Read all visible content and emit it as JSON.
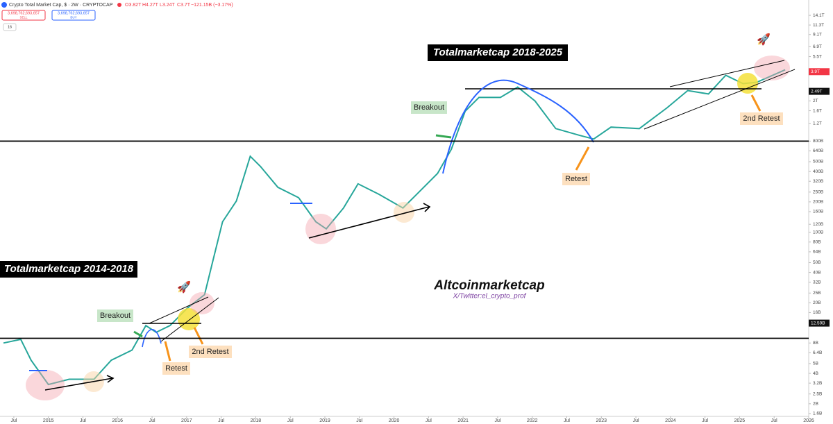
{
  "header": {
    "symbol": "Crypto Total Market Cap, $ · 2W · CRYPTOCAP",
    "open": "O3.82T",
    "high": "H4.27T",
    "low": "L3.24T",
    "close": "C3.7T",
    "change": "−121.15B (−3.17%)",
    "sell_price": "3,698,762,693,657",
    "sell": "SELL",
    "buy_price": "3,698,762,693,657",
    "buy": "BUY",
    "indicator_count": "16"
  },
  "annotations": {
    "title_recent": "Totalmarketcap 2018-2025",
    "title_early": "Totalmarketcap 2014-2018",
    "breakout_recent": "Breakout",
    "breakout_early": "Breakout",
    "retest_recent": "Retest",
    "retest_early": "Retest",
    "second_retest_recent": "2nd Retest",
    "second_retest_early": "2nd Retest",
    "watermark": "Altcoinmarketcap",
    "credit": "X/Twitter:el_crypto_prof"
  },
  "chart_data": {
    "type": "line",
    "log_scale": true,
    "color": "#26a69a",
    "x": [
      2014.35,
      2014.6,
      2014.75,
      2015.0,
      2015.3,
      2015.66,
      2015.91,
      2016.21,
      2016.41,
      2016.56,
      2016.76,
      2017.01,
      2017.26,
      2017.37,
      2017.52,
      2017.72,
      2017.92,
      2018.07,
      2018.32,
      2018.62,
      2018.87,
      2019.02,
      2019.27,
      2019.48,
      2019.78,
      2020.13,
      2020.33,
      2020.63,
      2020.83,
      2021.03,
      2021.23,
      2021.54,
      2021.79,
      2022.04,
      2022.34,
      2022.69,
      2022.89,
      2023.14,
      2023.55,
      2023.95,
      2024.25,
      2024.55,
      2024.8,
      2025.05,
      2025.25,
      2025.66
    ],
    "values": [
      8.0,
      8.7,
      5.4,
      3.1,
      3.5,
      3.5,
      5.4,
      6.8,
      11.9,
      10.2,
      11.9,
      17.7,
      24.1,
      49,
      127,
      204,
      566,
      447,
      279,
      220,
      127,
      108,
      174,
      302,
      238,
      174,
      238,
      382,
      664,
      1580,
      2165,
      2165,
      2745,
      2000,
      1065,
      910,
      840,
      1100,
      1065,
      1710,
      2534,
      2345,
      3590,
      2970,
      3066,
      4070
    ],
    "xlim": [
      2014.3,
      2026.0
    ],
    "xticks": [
      {
        "value": 2014.5,
        "label": "Jul"
      },
      2015,
      {
        "value": 2015.5,
        "label": "Jul"
      },
      2016,
      {
        "value": 2016.5,
        "label": "Jul"
      },
      2017,
      {
        "value": 2017.5,
        "label": "Jul"
      },
      2018,
      {
        "value": 2018.5,
        "label": "Jul"
      },
      2019,
      {
        "value": 2019.5,
        "label": "Jul"
      },
      2020,
      {
        "value": 2020.5,
        "label": "Jul"
      },
      2021,
      {
        "value": 2021.5,
        "label": "Jul"
      },
      2022,
      {
        "value": 2022.5,
        "label": "Jul"
      },
      2023,
      {
        "value": 2023.5,
        "label": "Jul"
      },
      2024,
      {
        "value": 2024.5,
        "label": "Jul"
      },
      2025,
      {
        "value": 2025.5,
        "label": "Jul"
      },
      2026
    ],
    "ylim": [
      1.5,
      20000
    ],
    "yticks": [
      {
        "value": 1.6,
        "label": "1.6B"
      },
      {
        "value": 2,
        "label": "2B"
      },
      {
        "value": 2.5,
        "label": "2.5B"
      },
      {
        "value": 3.2,
        "label": "3.2B"
      },
      {
        "value": 4,
        "label": "4B"
      },
      {
        "value": 5,
        "label": "5B"
      },
      {
        "value": 6.4,
        "label": "6.4B"
      },
      {
        "value": 8,
        "label": "8B"
      },
      {
        "value": 16,
        "label": "16B"
      },
      {
        "value": 20,
        "label": "20B"
      },
      {
        "value": 25,
        "label": "25B"
      },
      {
        "value": 32,
        "label": "32B"
      },
      {
        "value": 40,
        "label": "40B"
      },
      {
        "value": 50,
        "label": "50B"
      },
      {
        "value": 64,
        "label": "64B"
      },
      {
        "value": 80,
        "label": "80B"
      },
      {
        "value": 100,
        "label": "100B"
      },
      {
        "value": 120,
        "label": "120B"
      },
      {
        "value": 160,
        "label": "160B"
      },
      {
        "value": 200,
        "label": "200B"
      },
      {
        "value": 250,
        "label": "250B"
      },
      {
        "value": 320,
        "label": "320B"
      },
      {
        "value": 400,
        "label": "400B"
      },
      {
        "value": 500,
        "label": "500B"
      },
      {
        "value": 640,
        "label": "640B"
      },
      {
        "value": 800,
        "label": "800B"
      },
      {
        "value": 1200,
        "label": "1.2T"
      },
      {
        "value": 1600,
        "label": "1.6T"
      },
      {
        "value": 2000,
        "label": "2T"
      },
      {
        "value": 5500,
        "label": "5.5T"
      },
      {
        "value": 6900,
        "label": "6.9T"
      },
      {
        "value": 9100,
        "label": "9.1T"
      },
      {
        "value": 11300,
        "label": "11.3T"
      },
      {
        "value": 14100,
        "label": "14.1T"
      }
    ],
    "price_labels": [
      {
        "value": 12.59,
        "label": "12.59B",
        "color": "#111111"
      },
      {
        "value": 2490,
        "label": "2.49T",
        "color": "#111111"
      },
      {
        "value": 3900,
        "label": "3.9T",
        "color": "#f23645"
      }
    ],
    "levels": [
      800,
      8.9
    ]
  }
}
